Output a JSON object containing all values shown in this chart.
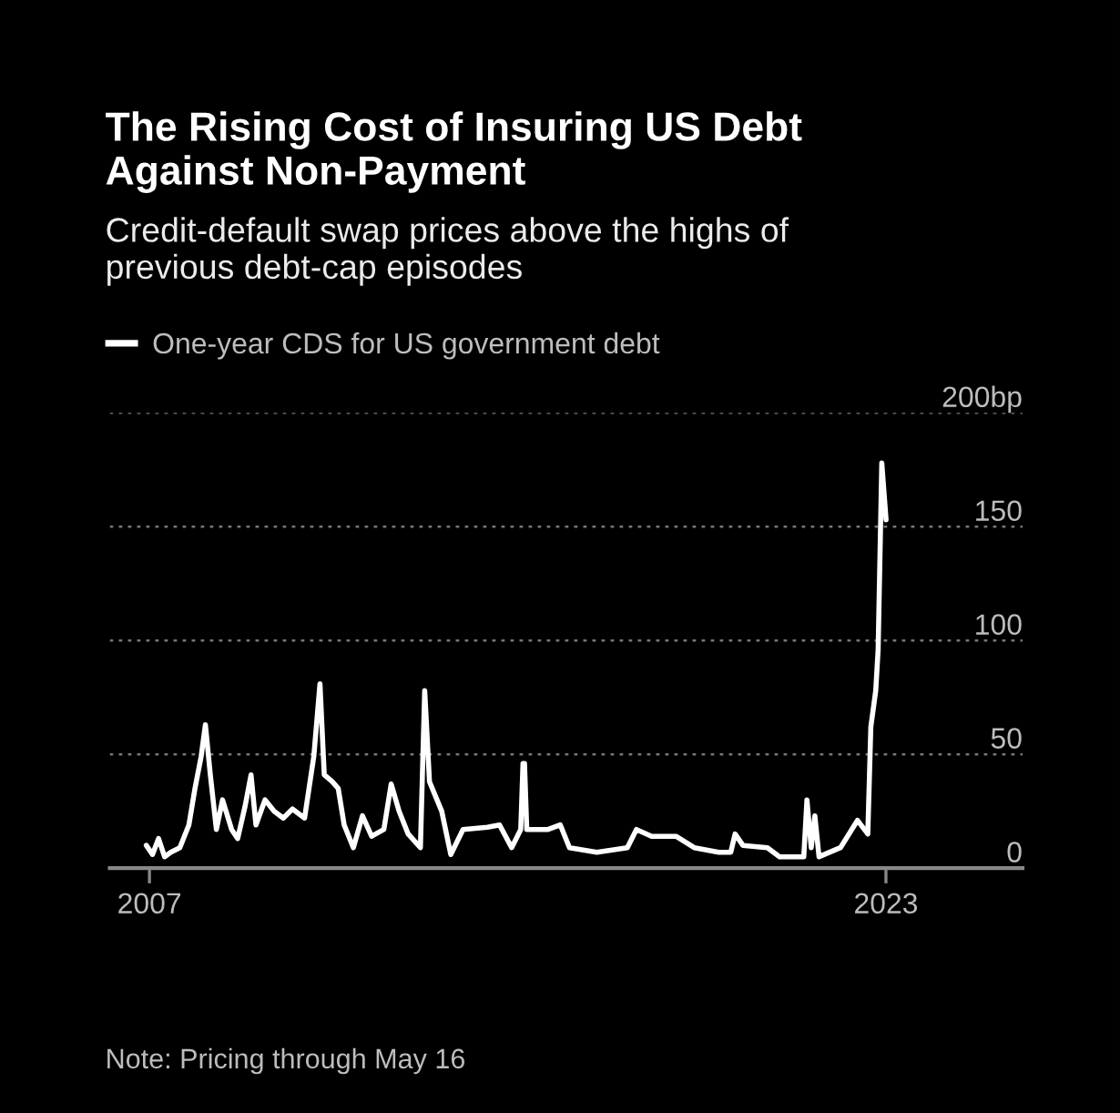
{
  "chart_data": {
    "type": "line",
    "title": "The Rising Cost of Insuring US Debt\nAgainst Non-Payment",
    "subtitle": "Credit-default swap prices above the highs of\nprevious debt-cap episodes",
    "annotations": [
      "Note: Pricing through May 16"
    ],
    "x": [
      "2006-12-07",
      "2007-01-25",
      "2007-03-14",
      "2007-05-01",
      "2007-06-19",
      "2007-08-30",
      "2007-11-10",
      "2007-12-28",
      "2008-02-15",
      "2008-03-20",
      "2008-04-28",
      "2008-06-15",
      "2008-08-03",
      "2008-10-14",
      "2008-12-01",
      "2009-01-28",
      "2009-03-17",
      "2009-04-25",
      "2009-07-06",
      "2009-09-17",
      "2009-11-28",
      "2010-02-09",
      "2010-05-16",
      "2010-07-28",
      "2010-09-15",
      "2010-10-19",
      "2010-12-21",
      "2011-02-07",
      "2011-03-26",
      "2011-06-07",
      "2011-08-18",
      "2011-10-30",
      "2012-02-04",
      "2012-04-02",
      "2012-06-04",
      "2012-08-15",
      "2012-11-20",
      "2012-12-24",
      "2013-01-31",
      "2013-05-08",
      "2013-07-19",
      "2013-10-24",
      "2014-05-06",
      "2014-08-10",
      "2014-11-14",
      "2015-01-25",
      "2015-02-12",
      "2015-02-24",
      "2015-03-14",
      "2015-08-30",
      "2015-12-05",
      "2016-02-16",
      "2016-09-20",
      "2017-05-20",
      "2017-07-31",
      "2017-11-29",
      "2018-06-10",
      "2018-11-02",
      "2019-05-15",
      "2019-08-19",
      "2019-09-22",
      "2019-11-23",
      "2020-06-04",
      "2020-09-09",
      "2021-03-20",
      "2021-04-14",
      "2021-05-18",
      "2021-06-16",
      "2021-07-19",
      "2022-01-05",
      "2022-05-20",
      "2022-08-10",
      "2022-09-03",
      "2022-10-12",
      "2022-10-31",
      "2022-11-29",
      "2023-01-02"
    ],
    "series": [
      {
        "name": "One-year CDS for US government debt",
        "color": "#ffffff",
        "values": [
          10,
          6,
          13,
          5,
          7,
          9,
          19,
          35,
          49,
          63,
          41,
          17,
          30,
          17,
          13,
          27,
          41,
          19,
          30,
          25,
          22,
          26,
          22,
          49,
          81,
          41,
          38,
          35,
          19,
          9,
          23,
          14,
          17,
          37,
          25,
          15,
          9,
          78,
          38,
          25,
          6,
          17,
          18,
          19,
          9,
          17,
          46,
          46,
          17,
          17,
          19,
          9,
          7,
          9,
          17,
          14,
          14,
          9,
          7,
          7,
          15,
          10,
          9,
          5,
          5,
          30,
          9,
          23,
          5,
          9,
          21,
          15,
          62,
          78,
          96,
          178,
          153
        ]
      }
    ],
    "xlim": [
      "2006-02-20",
      "2025-12-20"
    ],
    "xticks": [
      {
        "value": "2007-01-01",
        "label": "2007"
      },
      {
        "value": "2023-01-01",
        "label": "2023"
      }
    ],
    "ylim": [
      0,
      200
    ],
    "yticks": [
      0,
      50,
      100,
      150,
      {
        "value": 200,
        "label": "200bp"
      }
    ],
    "grid": "y",
    "legend": "top left",
    "line_style": "solid"
  }
}
